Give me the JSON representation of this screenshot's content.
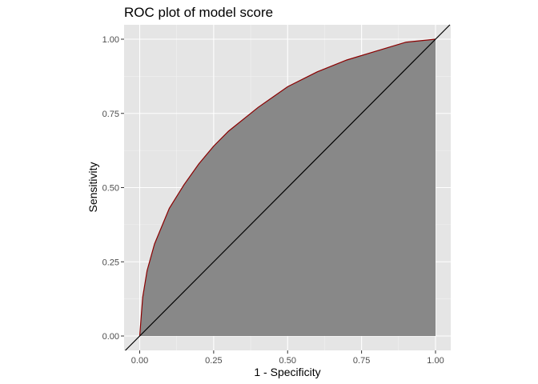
{
  "chart_data": {
    "type": "area",
    "title": "ROC plot of model score",
    "xlabel": "1 - Specificity",
    "ylabel": "Sensitivity",
    "xlim": [
      0,
      1
    ],
    "ylim": [
      0,
      1
    ],
    "xticks": [
      "0.00",
      "0.25",
      "0.50",
      "0.75",
      "1.00"
    ],
    "yticks": [
      "0.00",
      "0.25",
      "0.50",
      "0.75",
      "1.00"
    ],
    "grid": true,
    "series": [
      {
        "x": [
          0,
          0.01,
          0.025,
          0.05,
          0.1,
          0.15,
          0.2,
          0.25,
          0.3,
          0.4,
          0.5,
          0.6,
          0.7,
          0.8,
          0.9,
          1.0
        ],
        "y": [
          0,
          0.13,
          0.22,
          0.31,
          0.43,
          0.51,
          0.58,
          0.64,
          0.69,
          0.77,
          0.84,
          0.89,
          0.93,
          0.96,
          0.99,
          1.0
        ]
      }
    ],
    "reference_line": {
      "x": [
        0,
        1
      ],
      "y": [
        0,
        1
      ]
    },
    "colors": {
      "panel": "#e5e5e5",
      "grid_major": "#ffffff",
      "area_fill": "#888888",
      "curve": "#8b0000",
      "reference": "#000000"
    }
  }
}
